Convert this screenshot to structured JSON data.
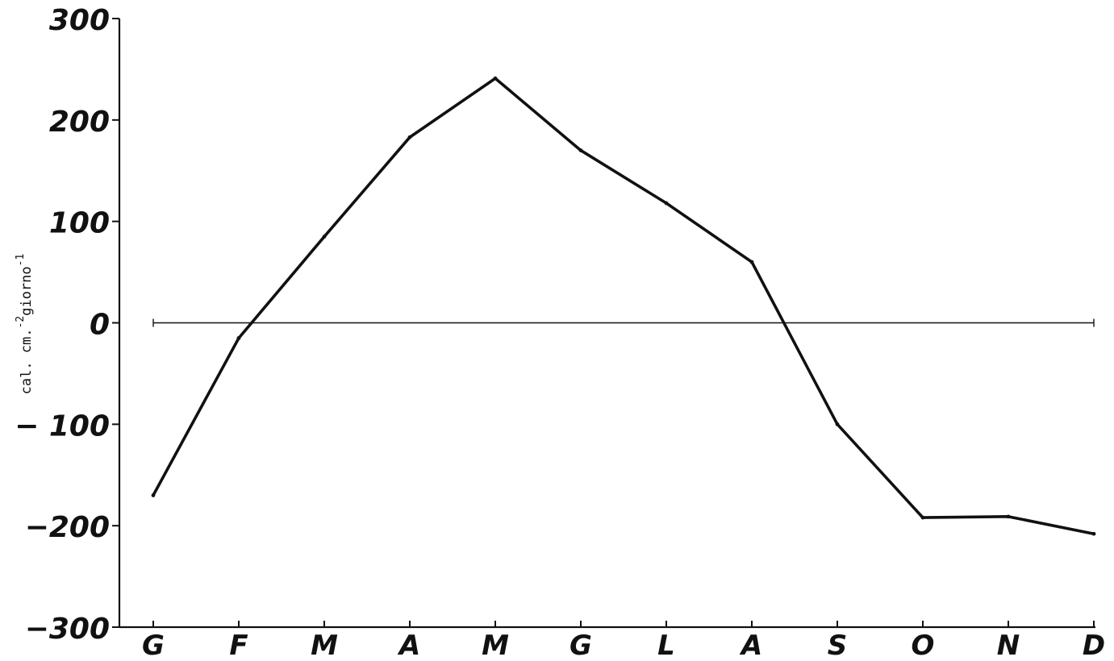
{
  "chart_data": {
    "type": "line",
    "title": "",
    "xlabel": "",
    "ylabel": {
      "base": "cal. cm.",
      "exp1": "-2",
      "mid": "giorno",
      "exp2": "-1"
    },
    "categories": [
      "G",
      "F",
      "M",
      "A",
      "M",
      "G",
      "L",
      "A",
      "S",
      "O",
      "N",
      "D"
    ],
    "ylim": [
      -300,
      300
    ],
    "yticks": [
      300,
      200,
      100,
      0,
      -100,
      -200,
      -300
    ],
    "ytick_labels": [
      "300",
      "200",
      "100",
      "0",
      "− 100",
      "−200",
      "−300"
    ],
    "zero_line": true,
    "grid": false,
    "legend": "none",
    "series": [
      {
        "values": [
          -170,
          -15,
          85,
          183,
          241,
          170,
          118,
          60,
          -100,
          -192,
          -191,
          -208
        ]
      }
    ]
  }
}
